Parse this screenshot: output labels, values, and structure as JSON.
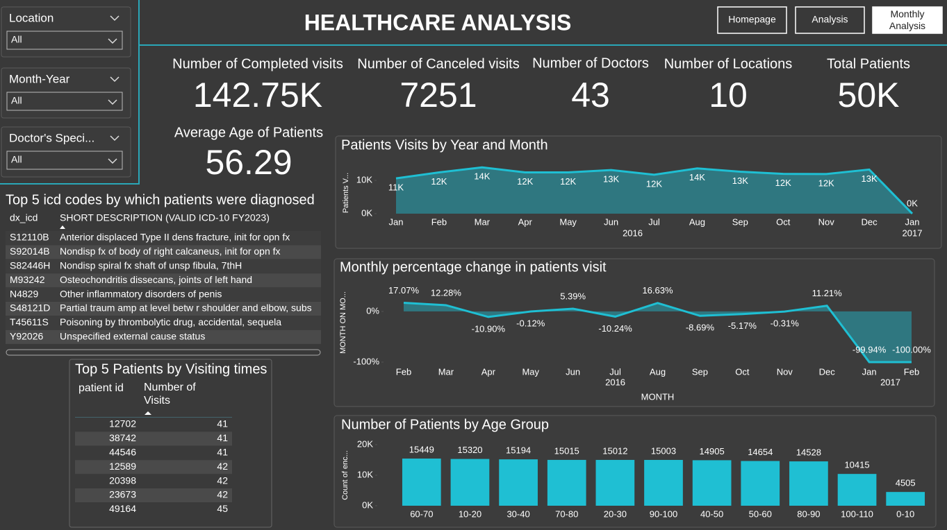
{
  "header": {
    "title": "HEALTHCARE ANALYSIS",
    "buttons": [
      "Homepage",
      "Analysis",
      "Monthly Analysis"
    ]
  },
  "filters": [
    {
      "label": "Location",
      "value": "All"
    },
    {
      "label": "Month-Year",
      "value": "All"
    },
    {
      "label": "Doctor's Speci...",
      "value": "All"
    }
  ],
  "kpis": [
    {
      "label": "Number of Completed visits",
      "value": "142.75K"
    },
    {
      "label": "Number of Canceled visits",
      "value": "7251"
    },
    {
      "label": "Number of Doctors",
      "value": "43"
    },
    {
      "label": "Number of Locations",
      "value": "10"
    },
    {
      "label": "Total Patients",
      "value": "50K"
    },
    {
      "label": "Average Age of Patients",
      "value": "56.29"
    }
  ],
  "icd_table": {
    "title": "Top 5 icd codes by which patients were diagnosed",
    "columns": [
      "dx_icd",
      "SHORT DESCRIPTION (VALID ICD-10 FY2023)"
    ],
    "rows": [
      [
        "S12110B",
        "Anterior displaced Type II dens fracture, init for opn fx"
      ],
      [
        "S92014B",
        "Nondisp fx of body of right calcaneus, init for opn fx"
      ],
      [
        "S82446H",
        "Nondisp spiral fx shaft of unsp fibula, 7thH"
      ],
      [
        "M93242",
        "Osteochondritis dissecans, joints of left hand"
      ],
      [
        "N4829",
        "Other inflammatory disorders of penis"
      ],
      [
        "S48121D",
        "Partial traum amp at level betw r shoulder and elbow, subs"
      ],
      [
        "T45611S",
        "Poisoning by thrombolytic drug, accidental, sequela"
      ],
      [
        "Y92026",
        "Unspecified external cause status"
      ]
    ]
  },
  "patients_table": {
    "title": "Top 5 Patients by Visiting times",
    "columns": [
      "patient id",
      "Number of Visits"
    ],
    "rows": [
      [
        12702,
        41
      ],
      [
        38742,
        41
      ],
      [
        44546,
        41
      ],
      [
        12589,
        42
      ],
      [
        20398,
        42
      ],
      [
        23673,
        42
      ],
      [
        49164,
        45
      ]
    ]
  },
  "chart_data": [
    {
      "type": "area",
      "title": "Patients Visits by Year and Month",
      "y_label": "Patients V...",
      "color": "#1fbfd3",
      "categories": [
        "Jan",
        "Feb",
        "Mar",
        "Apr",
        "May",
        "Jun",
        "Jul",
        "Aug",
        "Sep",
        "Oct",
        "Nov",
        "Dec",
        "Jan"
      ],
      "x_groups": [
        {
          "label": "2016",
          "count": 12
        },
        {
          "label": "2017",
          "count": 1
        }
      ],
      "values": [
        10600,
        12400,
        13900,
        12400,
        12400,
        13100,
        11700,
        13600,
        12600,
        11950,
        11900,
        13250,
        8
      ],
      "value_labels": [
        "11K",
        "12K",
        "14K",
        "12K",
        "12K",
        "13K",
        "12K",
        "14K",
        "13K",
        "12K",
        "12K",
        "13K",
        "0K"
      ],
      "ylim": [
        0,
        15000
      ],
      "yticks": [
        {
          "value": 0,
          "label": "0K"
        },
        {
          "value": 10000,
          "label": "10K"
        }
      ]
    },
    {
      "type": "area",
      "title": "Monthly percentage change in patients visit",
      "x_label": "MONTH",
      "y_label": "MONTH ON MO...",
      "color": "#1fbfd3",
      "categories": [
        "Feb",
        "Mar",
        "Apr",
        "May",
        "Jun",
        "Jul",
        "Aug",
        "Sep",
        "Oct",
        "Nov",
        "Dec",
        "Jan",
        "Feb"
      ],
      "x_groups": [
        {
          "label": "2016",
          "count": 11
        },
        {
          "label": "2017",
          "count": 2
        }
      ],
      "values": [
        17.07,
        12.28,
        -10.9,
        -0.12,
        5.39,
        -10.24,
        16.63,
        -8.69,
        -5.17,
        -0.31,
        11.21,
        -99.94,
        -100
      ],
      "value_labels": [
        "17.07%",
        "12.28%",
        "-10.90%",
        "-0.12%",
        "5.39%",
        "-10.24%",
        "16.63%",
        "-8.69%",
        "-5.17%",
        "-0.31%",
        "11.21%",
        "-99.94%",
        "-100.00%"
      ],
      "ylim": [
        -100,
        30
      ],
      "yticks": [
        {
          "value": -100,
          "label": "-100%"
        },
        {
          "value": 0,
          "label": "0%"
        }
      ]
    },
    {
      "type": "bar",
      "title": "Number of Patients by Age Group",
      "y_label": "Count of enc...",
      "color": "#1fbfd3",
      "categories": [
        "60-70",
        "10-20",
        "30-40",
        "70-80",
        "20-30",
        "90-100",
        "40-50",
        "50-60",
        "80-90",
        "100-110",
        "0-10"
      ],
      "values": [
        15449,
        15320,
        15194,
        15015,
        15012,
        15003,
        14905,
        14654,
        14528,
        10415,
        4505
      ],
      "ylim": [
        0,
        20000
      ],
      "yticks": [
        {
          "value": 0,
          "label": "0K"
        },
        {
          "value": 10000,
          "label": "10K"
        },
        {
          "value": 20000,
          "label": "20K"
        }
      ]
    }
  ]
}
